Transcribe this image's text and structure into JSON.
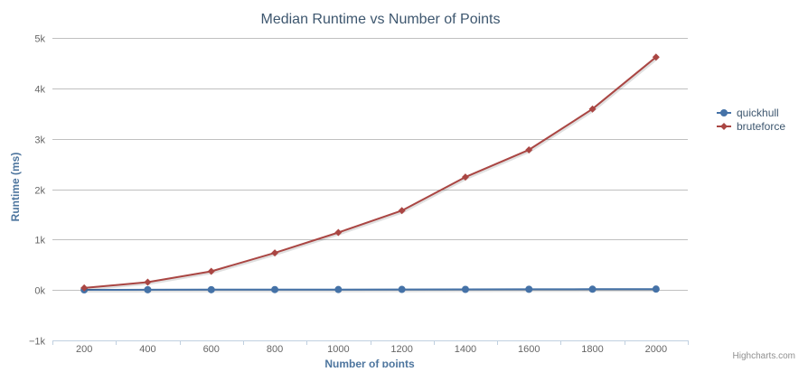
{
  "chart_data": {
    "type": "line",
    "title": "Median Runtime vs Number of Points",
    "xlabel": "Number of points",
    "ylabel": "Runtime (ms)",
    "x": [
      200,
      400,
      600,
      800,
      1000,
      1200,
      1400,
      1600,
      1800,
      2000
    ],
    "x_tick_labels": [
      "200",
      "400",
      "600",
      "800",
      "1000",
      "1200",
      "1400",
      "1600",
      "1800",
      "2000"
    ],
    "y_ticks": [
      -1000,
      0,
      1000,
      2000,
      3000,
      4000,
      5000
    ],
    "y_tick_labels": [
      "−1k",
      "0k",
      "1k",
      "2k",
      "3k",
      "4k",
      "5k"
    ],
    "ylim": [
      -1000,
      5000
    ],
    "grid": true,
    "legend_position": "right",
    "series": [
      {
        "name": "quickhull",
        "color": "#4572A7",
        "marker": "circle",
        "values": [
          3,
          5,
          6,
          8,
          9,
          11,
          12,
          14,
          16,
          18
        ]
      },
      {
        "name": "bruteforce",
        "color": "#AA4643",
        "marker": "diamond",
        "values": [
          40,
          155,
          370,
          735,
          1140,
          1575,
          2240,
          2780,
          3590,
          4620
        ]
      }
    ]
  },
  "credits": "Highcharts.com"
}
